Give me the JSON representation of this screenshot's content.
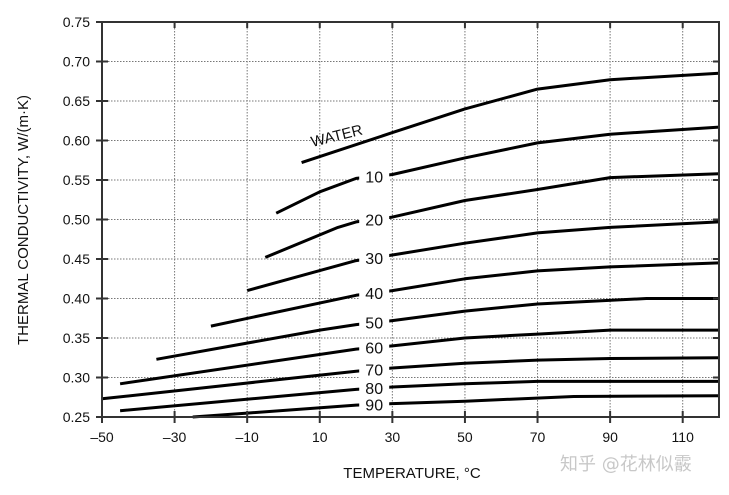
{
  "chart_data": {
    "type": "line",
    "title": "",
    "xlabel": "TEMPERATURE, °C",
    "ylabel": "THERMAL CONDUCTIVITY, W/(m·K)",
    "xlim": [
      -50,
      120
    ],
    "ylim": [
      0.25,
      0.75
    ],
    "xticks": [
      -50,
      -30,
      -10,
      10,
      30,
      50,
      70,
      90,
      110
    ],
    "xtick_labels": [
      "–50",
      "–30",
      "–10",
      "10",
      "30",
      "50",
      "70",
      "90",
      "110"
    ],
    "yticks": [
      0.25,
      0.3,
      0.35,
      0.4,
      0.45,
      0.5,
      0.55,
      0.6,
      0.65,
      0.7,
      0.75
    ],
    "ytick_labels": [
      "0.25",
      "0.30",
      "0.35",
      "0.40",
      "0.45",
      "0.50",
      "0.55",
      "0.60",
      "0.65",
      "0.70",
      "0.75"
    ],
    "grid": true,
    "series": [
      {
        "name": "WATER",
        "label_x": 15,
        "x": [
          5,
          30,
          50,
          70,
          90,
          120
        ],
        "y": [
          0.572,
          0.61,
          0.64,
          0.665,
          0.677,
          0.685
        ]
      },
      {
        "name": "10",
        "label_x": 25,
        "x": [
          -2,
          10,
          20,
          30,
          50,
          70,
          90,
          120
        ],
        "y": [
          0.508,
          0.535,
          0.552,
          0.557,
          0.578,
          0.597,
          0.608,
          0.617
        ]
      },
      {
        "name": "20",
        "label_x": 25,
        "x": [
          -5,
          15,
          20,
          30,
          50,
          70,
          90,
          120
        ],
        "y": [
          0.452,
          0.49,
          0.497,
          0.503,
          0.524,
          0.538,
          0.553,
          0.558
        ]
      },
      {
        "name": "30",
        "label_x": 25,
        "x": [
          -10,
          20,
          30,
          50,
          70,
          90,
          120
        ],
        "y": [
          0.41,
          0.448,
          0.455,
          0.47,
          0.483,
          0.49,
          0.497
        ]
      },
      {
        "name": "40",
        "label_x": 25,
        "x": [
          -20,
          20,
          30,
          50,
          70,
          90,
          120
        ],
        "y": [
          0.365,
          0.404,
          0.41,
          0.425,
          0.435,
          0.44,
          0.445
        ]
      },
      {
        "name": "50",
        "label_x": 25,
        "x": [
          -35,
          10,
          20,
          30,
          50,
          70,
          100,
          120
        ],
        "y": [
          0.323,
          0.36,
          0.367,
          0.372,
          0.384,
          0.393,
          0.4,
          0.4
        ]
      },
      {
        "name": "60",
        "label_x": 25,
        "x": [
          -45,
          20,
          30,
          50,
          70,
          90,
          120
        ],
        "y": [
          0.292,
          0.336,
          0.34,
          0.35,
          0.355,
          0.36,
          0.36
        ]
      },
      {
        "name": "70",
        "label_x": 25,
        "x": [
          -50,
          20,
          30,
          50,
          70,
          90,
          120
        ],
        "y": [
          0.273,
          0.308,
          0.312,
          0.318,
          0.322,
          0.324,
          0.325
        ]
      },
      {
        "name": "80",
        "label_x": 25,
        "x": [
          -45,
          20,
          30,
          50,
          70,
          120
        ],
        "y": [
          0.258,
          0.285,
          0.288,
          0.292,
          0.295,
          0.295
        ]
      },
      {
        "name": "90",
        "label_x": 25,
        "x": [
          -25,
          -10,
          20,
          30,
          50,
          80,
          120
        ],
        "y": [
          0.25,
          0.255,
          0.265,
          0.267,
          0.27,
          0.276,
          0.277
        ]
      }
    ]
  },
  "watermark": "知乎 @花林似霰"
}
